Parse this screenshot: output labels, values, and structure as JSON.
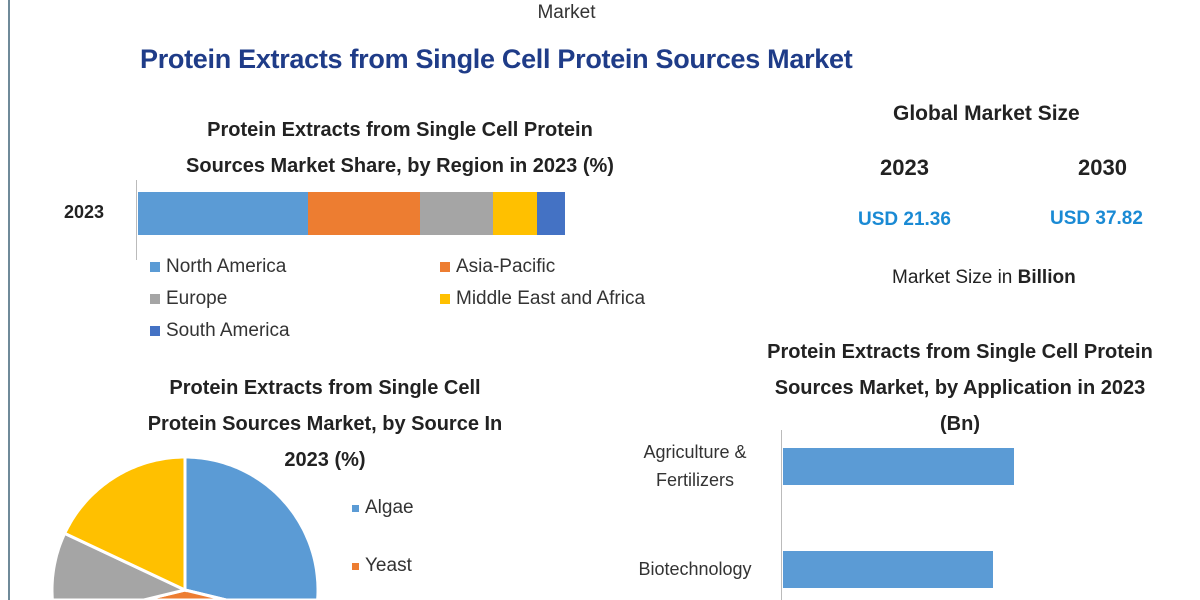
{
  "header": {
    "cut_text": "Market",
    "title": "Protein Extracts from Single Cell Protein Sources Market"
  },
  "summary": {
    "title": "Global Market Size",
    "years": [
      "2023",
      "2030"
    ],
    "values": [
      "USD 21.36",
      "USD 37.82"
    ],
    "unit_prefix": "Market Size in ",
    "unit_bold": "Billion"
  },
  "chart_data": [
    {
      "type": "bar",
      "stacked": true,
      "orientation": "horizontal",
      "title_lines": [
        "Protein Extracts from Single Cell Protein",
        "Sources Market Share, by Region in 2023 (%)"
      ],
      "categories": [
        "2023"
      ],
      "series": [
        {
          "name": "North America",
          "values": [
            39.8
          ],
          "color": "#5b9bd5"
        },
        {
          "name": "Asia-Pacific",
          "values": [
            26.2
          ],
          "color": "#ed7d31"
        },
        {
          "name": "Europe",
          "values": [
            17.1
          ],
          "color": "#a5a5a5"
        },
        {
          "name": "Middle East and Africa",
          "values": [
            10.3
          ],
          "color": "#ffc000"
        },
        {
          "name": "South America",
          "values": [
            6.6
          ],
          "color": "#4472c4"
        }
      ],
      "legend": "bottom"
    },
    {
      "type": "pie",
      "title_lines": [
        "Protein Extracts from Single Cell",
        "Protein Sources Market, by Source In",
        "2023 (%)"
      ],
      "slices": [
        {
          "label": "Algae",
          "value": 45,
          "color": "#5b9bd5"
        },
        {
          "label": "Yeast",
          "value": 10,
          "color": "#ed7d31"
        },
        {
          "label": "",
          "value": 27,
          "color": "#a5a5a5"
        },
        {
          "label": "",
          "value": 18,
          "color": "#ffc000"
        }
      ],
      "legend": "right"
    },
    {
      "type": "bar",
      "orientation": "horizontal",
      "title_lines": [
        "Protein Extracts from Single Cell Protein",
        "Sources Market, by Application in 2023",
        "(Bn)"
      ],
      "categories": [
        [
          "Agriculture &",
          "Fertilizers"
        ],
        [
          "Biotechnology"
        ]
      ],
      "values": [
        11.0,
        10.0
      ],
      "color": "#5b9bd5",
      "xlim": [
        0,
        12
      ]
    }
  ]
}
